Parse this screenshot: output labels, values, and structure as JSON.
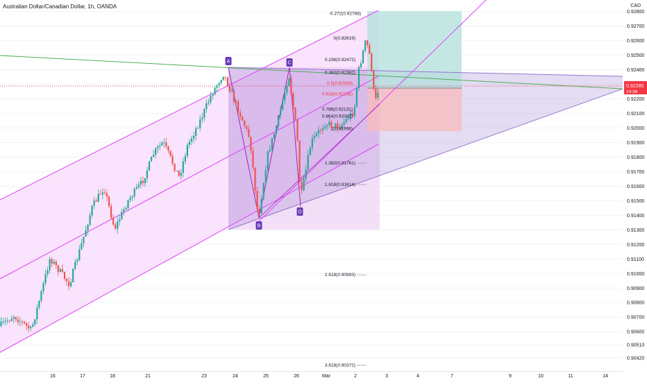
{
  "header": {
    "title": "Australian Dollar/Canadian Dollar, 1h, OANDA",
    "currency": "CAD"
  },
  "chart_data": {
    "type": "candlestick",
    "symbol": "AUDCAD",
    "timeframe": "1h",
    "y_ticks": [
      0.928,
      0.927,
      0.926,
      0.925,
      0.924,
      0.923,
      0.922,
      0.921,
      0.92,
      0.919,
      0.918,
      0.917,
      0.916,
      0.915,
      0.914,
      0.913,
      0.912,
      0.911,
      0.91,
      0.909,
      0.908,
      0.907,
      0.906,
      0.9051,
      0.9042
    ],
    "x_ticks": [
      "16",
      "17",
      "18",
      "21",
      "23",
      "24",
      "25",
      "26",
      "Mar",
      "2",
      "3",
      "4",
      "7",
      "9",
      "10",
      "11",
      "14"
    ],
    "current_price": {
      "value": "0.92285",
      "countdown": "14:36",
      "color": "#f23645"
    },
    "pattern_points": [
      "A",
      "B",
      "C",
      "D"
    ],
    "fib_levels": [
      {
        "label": "-0.272(0.92788)",
        "value": 0.92788
      },
      {
        "label": "0(0.92619)",
        "value": 0.92619
      },
      {
        "label": "0.236(0.92472)",
        "value": 0.92472
      },
      {
        "label": "0.382(0.92382)",
        "value": 0.92382
      },
      {
        "label": "0.5(0.92309)",
        "value": 0.92309,
        "color": "#f23645"
      },
      {
        "label": "0.618(0.92236)",
        "value": 0.92236,
        "color": "#f23645"
      },
      {
        "label": "0.786(0.92131)",
        "value": 0.92131
      },
      {
        "label": "0.864(0.92082)",
        "value": 0.92082
      },
      {
        "label": "1(0.91998)",
        "value": 0.91998
      },
      {
        "label": "1.382(0.91761)",
        "value": 0.91761
      },
      {
        "label": "1.618(0.91614)",
        "value": 0.91614
      },
      {
        "label": "2.618(0.90993)",
        "value": 0.90993
      },
      {
        "label": "3.618(0.90372)",
        "value": 0.90372
      }
    ],
    "colors": {
      "up": "#26a69a",
      "down": "#ef5350",
      "channel": "#e040fb",
      "channel_fill": "#f8d7fb",
      "pattern": "#9c27b0",
      "triangle": "#9575cd",
      "trendline_green": "#4caf50",
      "target_zone": "#b2dfdb",
      "stop_zone": "#f8bbbb"
    }
  }
}
